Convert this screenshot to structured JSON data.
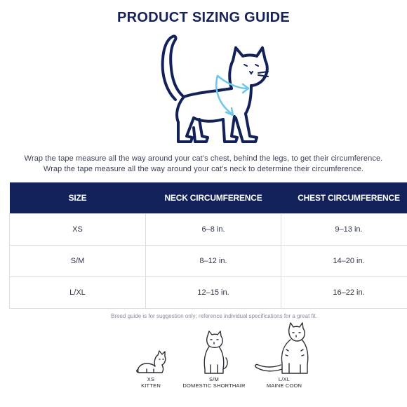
{
  "title": "PRODUCT SIZING GUIDE",
  "instructions": {
    "line1": "Wrap the tape measure all the way around your cat’s chest, behind the legs, to get their circumference.",
    "line2": "Wrap the tape measure all the way around your cat’s neck to determine their circumference."
  },
  "table": {
    "headers": [
      "SIZE",
      "NECK CIRCUMFERENCE",
      "CHEST CIRCUMFERENCE"
    ],
    "rows": [
      [
        "XS",
        "6–8 in.",
        "9–13 in."
      ],
      [
        "S/M",
        "8–12 in.",
        "14–20 in."
      ],
      [
        "L/XL",
        "12–15 in.",
        "16–22 in."
      ]
    ]
  },
  "breed_note": "Breed guide is for suggestion only; reference individual specifications for a great fit.",
  "breeds": [
    {
      "size": "XS",
      "name": "KITTEN",
      "icon": "kitten-icon"
    },
    {
      "size": "S/M",
      "name": "DOMESTIC SHORTHAIR",
      "icon": "shorthair-cat-icon"
    },
    {
      "size": "L/XL",
      "name": "MAINE COON",
      "icon": "maine-coon-icon"
    }
  ],
  "colors": {
    "navy": "#13215a",
    "arrow": "#6ec6ea",
    "grid": "#dcdde3"
  }
}
